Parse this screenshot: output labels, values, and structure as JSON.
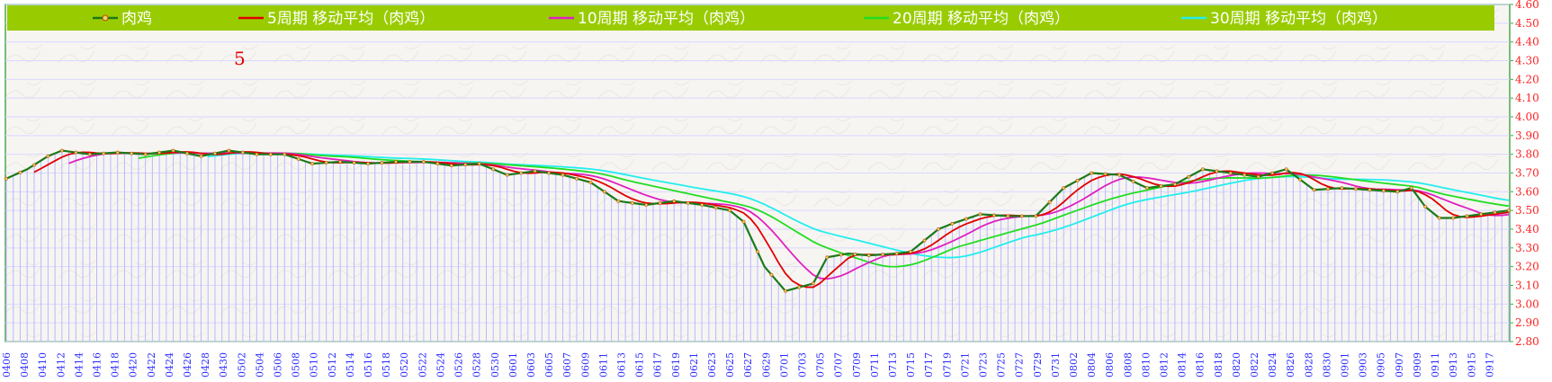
{
  "chart_data": {
    "type": "line",
    "title": "",
    "xlabel": "",
    "ylabel": "",
    "ylim": [
      2.8,
      4.6
    ],
    "yticks": [
      "2.80",
      "2.90",
      "3.00",
      "3.10",
      "3.20",
      "3.30",
      "3.40",
      "3.50",
      "3.60",
      "3.70",
      "3.80",
      "3.90",
      "4.00",
      "4.10",
      "4.20",
      "4.30",
      "4.40",
      "4.50",
      "4.60"
    ],
    "grid": true,
    "legend_position": "top",
    "annotation": "5",
    "colors": {
      "legend_bg": "#99cc00",
      "drop_lines": "#b8b8ff",
      "grid": "#d8d8ff",
      "ytick_text": "#ff2020",
      "xtick_text": "#2a2aff",
      "frame": "#4aa84a"
    },
    "xticks": [
      "0406",
      "0408",
      "0410",
      "0412",
      "0414",
      "0416",
      "0418",
      "0420",
      "0422",
      "0424",
      "0426",
      "0428",
      "0430",
      "0502",
      "0504",
      "0506",
      "0508",
      "0510",
      "0512",
      "0514",
      "0516",
      "0518",
      "0520",
      "0522",
      "0524",
      "0526",
      "0528",
      "0530",
      "0601",
      "0603",
      "0605",
      "0607",
      "0609",
      "0611",
      "0613",
      "0615",
      "0617",
      "0619",
      "0621",
      "0623",
      "0625",
      "0627",
      "0629",
      "0701",
      "0703",
      "0705",
      "0707",
      "0709",
      "0711",
      "0713",
      "0715",
      "0717",
      "0719",
      "0721",
      "0723",
      "0725",
      "0727",
      "0729",
      "0731",
      "0802",
      "0804",
      "0806",
      "0808",
      "0810",
      "0812",
      "0814",
      "0816",
      "0818",
      "0820",
      "0822",
      "0824",
      "0826",
      "0828",
      "0830",
      "0901",
      "0903",
      "0905",
      "0907",
      "0909",
      "0911",
      "0913",
      "0915",
      "0917"
    ],
    "key_points": [
      [
        0,
        3.67
      ],
      [
        3,
        3.72
      ],
      [
        6,
        3.79
      ],
      [
        8,
        3.82
      ],
      [
        12,
        3.8
      ],
      [
        16,
        3.81
      ],
      [
        20,
        3.8
      ],
      [
        24,
        3.82
      ],
      [
        28,
        3.79
      ],
      [
        32,
        3.82
      ],
      [
        36,
        3.8
      ],
      [
        40,
        3.8
      ],
      [
        44,
        3.75
      ],
      [
        48,
        3.76
      ],
      [
        52,
        3.75
      ],
      [
        56,
        3.76
      ],
      [
        60,
        3.76
      ],
      [
        64,
        3.74
      ],
      [
        68,
        3.75
      ],
      [
        72,
        3.69
      ],
      [
        76,
        3.71
      ],
      [
        80,
        3.69
      ],
      [
        84,
        3.65
      ],
      [
        88,
        3.55
      ],
      [
        92,
        3.53
      ],
      [
        96,
        3.55
      ],
      [
        100,
        3.53
      ],
      [
        104,
        3.5
      ],
      [
        106,
        3.44
      ],
      [
        109,
        3.2
      ],
      [
        112,
        3.07
      ],
      [
        116,
        3.11
      ],
      [
        118,
        3.25
      ],
      [
        121,
        3.27
      ],
      [
        124,
        3.26
      ],
      [
        128,
        3.27
      ],
      [
        130,
        3.28
      ],
      [
        134,
        3.4
      ],
      [
        136,
        3.43
      ],
      [
        140,
        3.48
      ],
      [
        144,
        3.47
      ],
      [
        148,
        3.47
      ],
      [
        152,
        3.62
      ],
      [
        156,
        3.7
      ],
      [
        160,
        3.69
      ],
      [
        164,
        3.62
      ],
      [
        168,
        3.64
      ],
      [
        172,
        3.72
      ],
      [
        176,
        3.7
      ],
      [
        180,
        3.68
      ],
      [
        184,
        3.72
      ],
      [
        188,
        3.61
      ],
      [
        192,
        3.62
      ],
      [
        196,
        3.61
      ],
      [
        200,
        3.6
      ],
      [
        202,
        3.62
      ],
      [
        204,
        3.52
      ],
      [
        206,
        3.46
      ],
      [
        208,
        3.46
      ],
      [
        210,
        3.47
      ],
      [
        212,
        3.48
      ],
      [
        214,
        3.49
      ],
      [
        216,
        3.5
      ]
    ],
    "series": [
      {
        "name": "肉鸡",
        "color": "#1a7a1a",
        "period": 0,
        "marker": true
      },
      {
        "name": "5周期 移动平均（肉鸡）",
        "color": "#e00000",
        "period": 5
      },
      {
        "name": "10周期 移动平均（肉鸡）",
        "color": "#e020c0",
        "period": 10
      },
      {
        "name": "20周期 移动平均（肉鸡）",
        "color": "#22dd22",
        "period": 20
      },
      {
        "name": "30周期 移动平均（肉鸡）",
        "color": "#22eeee",
        "period": 30
      }
    ]
  }
}
